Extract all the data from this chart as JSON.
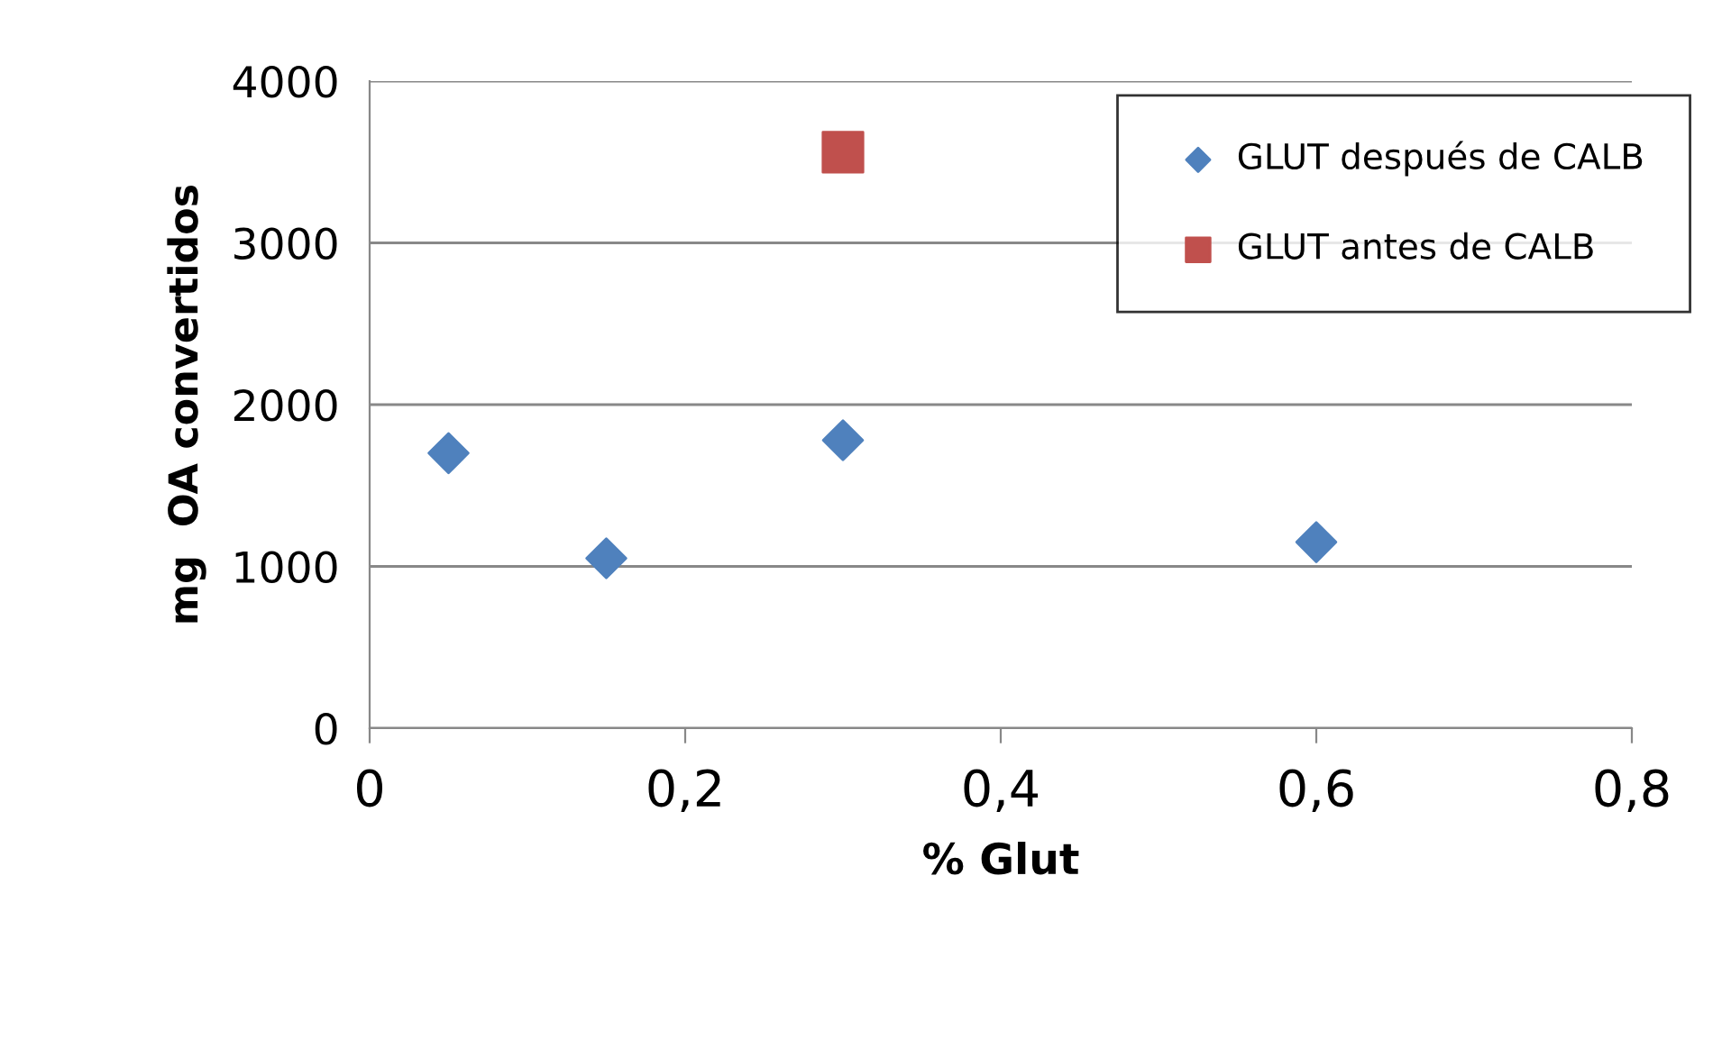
{
  "chart_data": {
    "type": "scatter",
    "xlabel": "% Glut",
    "ylabel": "mg  OA convertidos",
    "xlim": [
      0,
      0.8
    ],
    "xticks": [
      {
        "value": 0,
        "label": "0"
      },
      {
        "value": 0.2,
        "label": "0,2"
      },
      {
        "value": 0.4,
        "label": "0,4"
      },
      {
        "value": 0.6,
        "label": "0,6"
      },
      {
        "value": 0.8,
        "label": "0,8"
      }
    ],
    "ylim": [
      0,
      4000
    ],
    "yticks": [
      0,
      1000,
      2000,
      3000,
      4000
    ],
    "grid": "y",
    "legend": "top right",
    "series": [
      {
        "name": "GLUT después de CALB",
        "color": "#4f81bd",
        "marker": "diamond",
        "x": [
          0.05,
          0.15,
          0.3,
          0.6
        ],
        "values": [
          1700,
          1050,
          1780,
          1150
        ]
      },
      {
        "name": "GLUT antes de CALB",
        "color": "#c0504d",
        "marker": "square",
        "x": [
          0.3
        ],
        "values": [
          3560
        ]
      }
    ]
  }
}
